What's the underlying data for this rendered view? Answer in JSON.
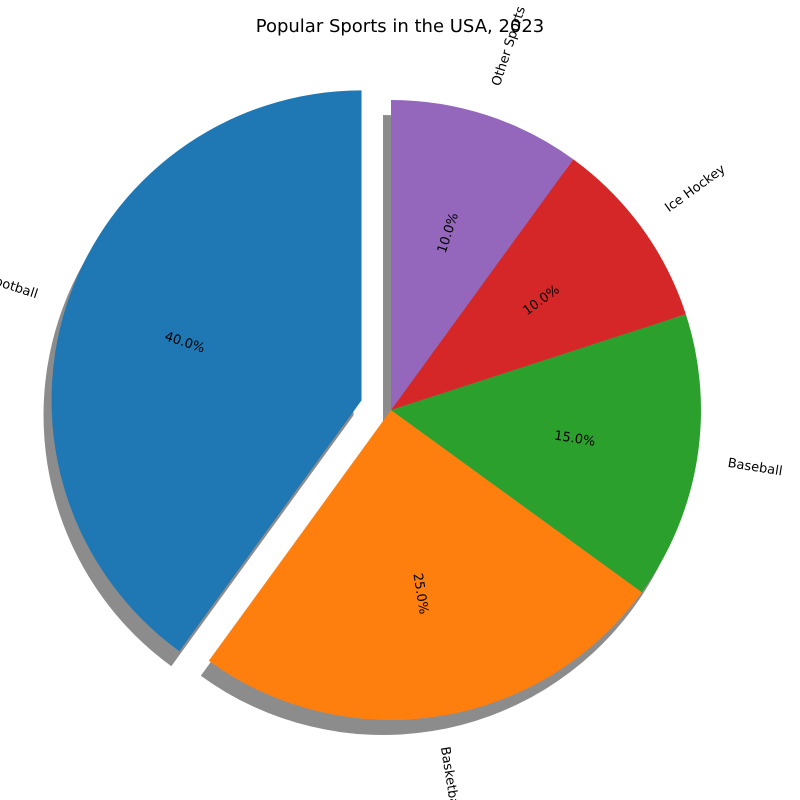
{
  "chart_data": {
    "type": "pie",
    "title": "Popular Sports in the USA, 2023",
    "start_angle_deg": 90,
    "direction": "counterclockwise",
    "shadow": true,
    "slices": [
      {
        "label": "Football",
        "value": 40.0,
        "pct_label": "40.0%",
        "color": "#1f77b4",
        "exploded": true
      },
      {
        "label": "Basketball",
        "value": 25.0,
        "pct_label": "25.0%",
        "color": "#ff7f0e",
        "exploded": false
      },
      {
        "label": "Baseball",
        "value": 15.0,
        "pct_label": "15.0%",
        "color": "#2ca02c",
        "exploded": false
      },
      {
        "label": "Ice Hockey",
        "value": 10.0,
        "pct_label": "10.0%",
        "color": "#d62728",
        "exploded": false
      },
      {
        "label": "Other Sports",
        "value": 10.0,
        "pct_label": "10.0%",
        "color": "#9467bd",
        "exploded": false
      }
    ]
  }
}
